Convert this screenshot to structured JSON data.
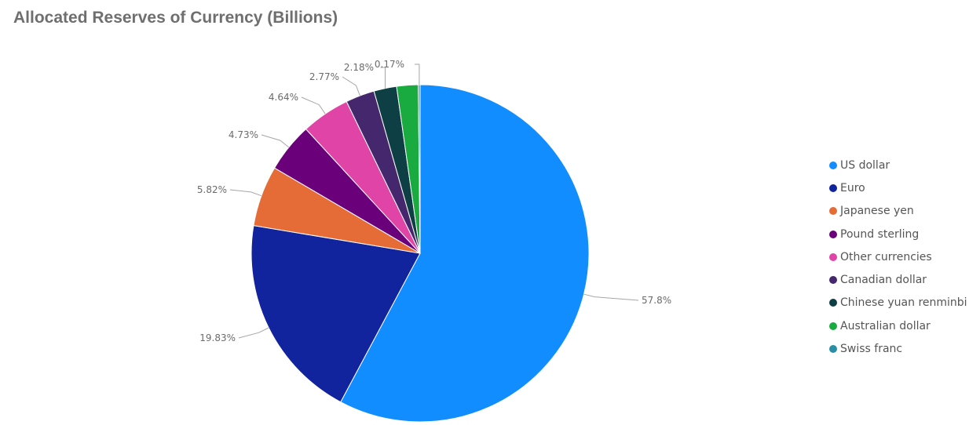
{
  "chart_data": {
    "type": "pie",
    "title": "Allocated Reserves of Currency (Billions)",
    "legend_position": "right",
    "slices": [
      {
        "name": "US dollar",
        "value": 57.8,
        "label": "57.8%",
        "color": "#118dff"
      },
      {
        "name": "Euro",
        "value": 19.83,
        "label": "19.83%",
        "color": "#12239e"
      },
      {
        "name": "Japanese yen",
        "value": 5.82,
        "label": "5.82%",
        "color": "#e66c37"
      },
      {
        "name": "Pound sterling",
        "value": 4.73,
        "label": "4.73%",
        "color": "#6b007b"
      },
      {
        "name": "Other currencies",
        "value": 4.64,
        "label": "4.64%",
        "color": "#e044a7"
      },
      {
        "name": "Canadian dollar",
        "value": 2.77,
        "label": "2.77%",
        "color": "#44276d"
      },
      {
        "name": "Chinese yuan renminbi",
        "value": 2.18,
        "label": "2.18%",
        "color": "#0d3f44"
      },
      {
        "name": "Australian dollar",
        "value": 2.06,
        "label": "",
        "color": "#1aab40"
      },
      {
        "name": "Swiss franc",
        "value": 0.17,
        "label": "0.17%",
        "color": "#2a8fa6"
      }
    ]
  }
}
